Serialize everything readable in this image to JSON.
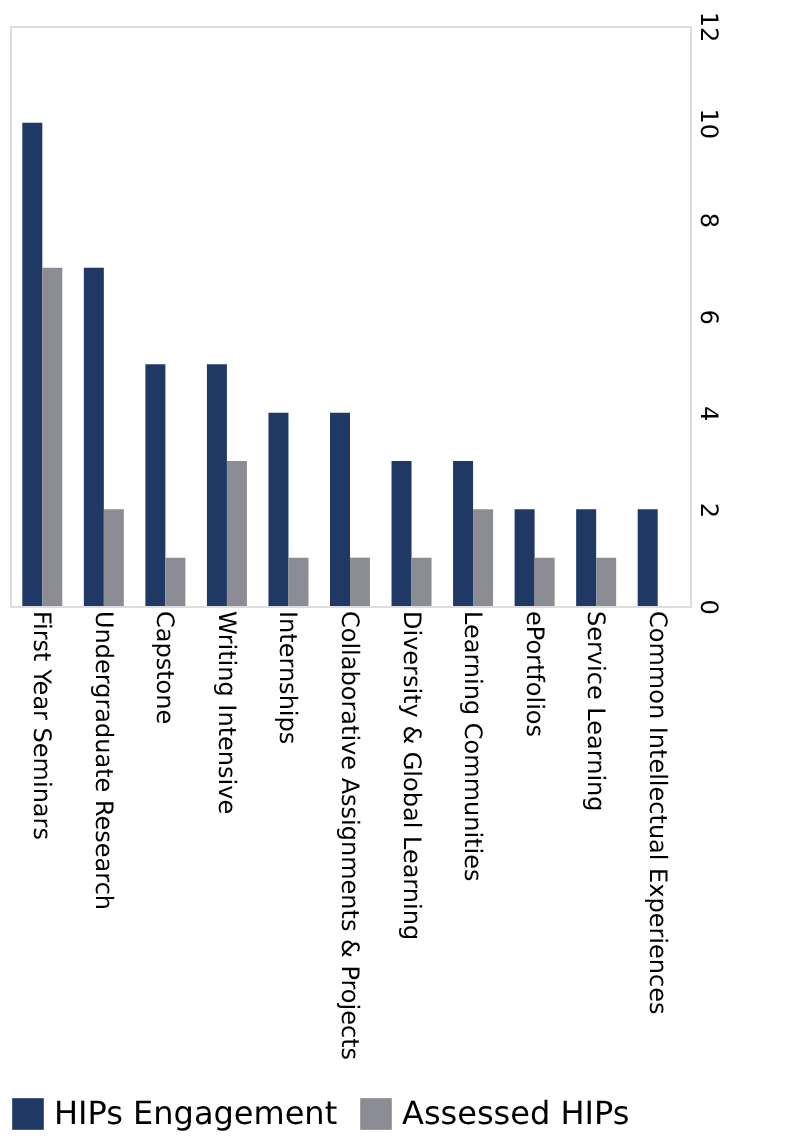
{
  "chart_data": {
    "type": "bar",
    "categories": [
      "First Year Seminars",
      "Undergraduate Research",
      "Capstone",
      "Writing Intensive",
      "Internships",
      "Collaborative Assignments & Projects",
      "Diversity & Global Learning",
      "Learning Communities",
      "ePortfolios",
      "Service Learning",
      "Common Intellectual Experiences"
    ],
    "series": [
      {
        "name": "HIPs Engagement",
        "color": "#1f3864",
        "values": [
          10,
          7,
          5,
          5,
          4,
          4,
          3,
          3,
          2,
          2,
          2
        ]
      },
      {
        "name": "Assessed HIPs",
        "color": "#8c8c94",
        "values": [
          7,
          2,
          1,
          3,
          1,
          1,
          1,
          2,
          1,
          1,
          0
        ]
      }
    ],
    "ylim": [
      0,
      12
    ],
    "yticks": [
      0,
      2,
      4,
      6,
      8,
      10,
      12
    ],
    "grid": false,
    "legend": "bottom"
  }
}
